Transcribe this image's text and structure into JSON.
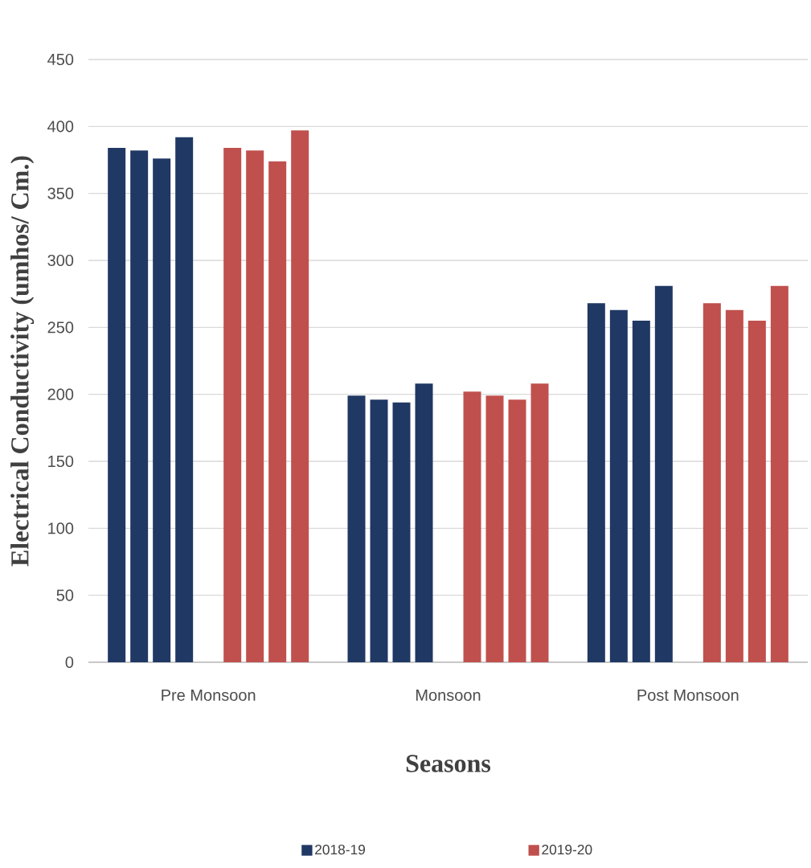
{
  "chart_data": {
    "type": "bar",
    "xlabel": "Seasons",
    "ylabel": "Electrical Conductivity (umhos/ Cm.)",
    "categories": [
      "Pre Monsoon",
      "Monsoon",
      "Post Monsoon"
    ],
    "series": [
      {
        "name": "2018-19",
        "color": "#203864",
        "values": [
          384,
          199,
          268
        ]
      },
      {
        "color": "#203864",
        "values": [
          382,
          196,
          263
        ]
      },
      {
        "color": "#203864",
        "values": [
          376,
          194,
          255
        ]
      },
      {
        "color": "#203864",
        "values": [
          392,
          208,
          281
        ]
      },
      {
        "name": "2019-20",
        "color": "#c0504d",
        "values": [
          384,
          202,
          268
        ]
      },
      {
        "color": "#c0504d",
        "values": [
          382,
          199,
          263
        ]
      },
      {
        "color": "#c0504d",
        "values": [
          374,
          196,
          255
        ]
      },
      {
        "color": "#c0504d",
        "values": [
          397,
          208,
          281
        ]
      }
    ],
    "ylim": [
      0,
      450
    ],
    "yticks": [
      0,
      50,
      100,
      150,
      200,
      250,
      300,
      350,
      400,
      450
    ],
    "grid": "y",
    "legend": "bottom"
  }
}
